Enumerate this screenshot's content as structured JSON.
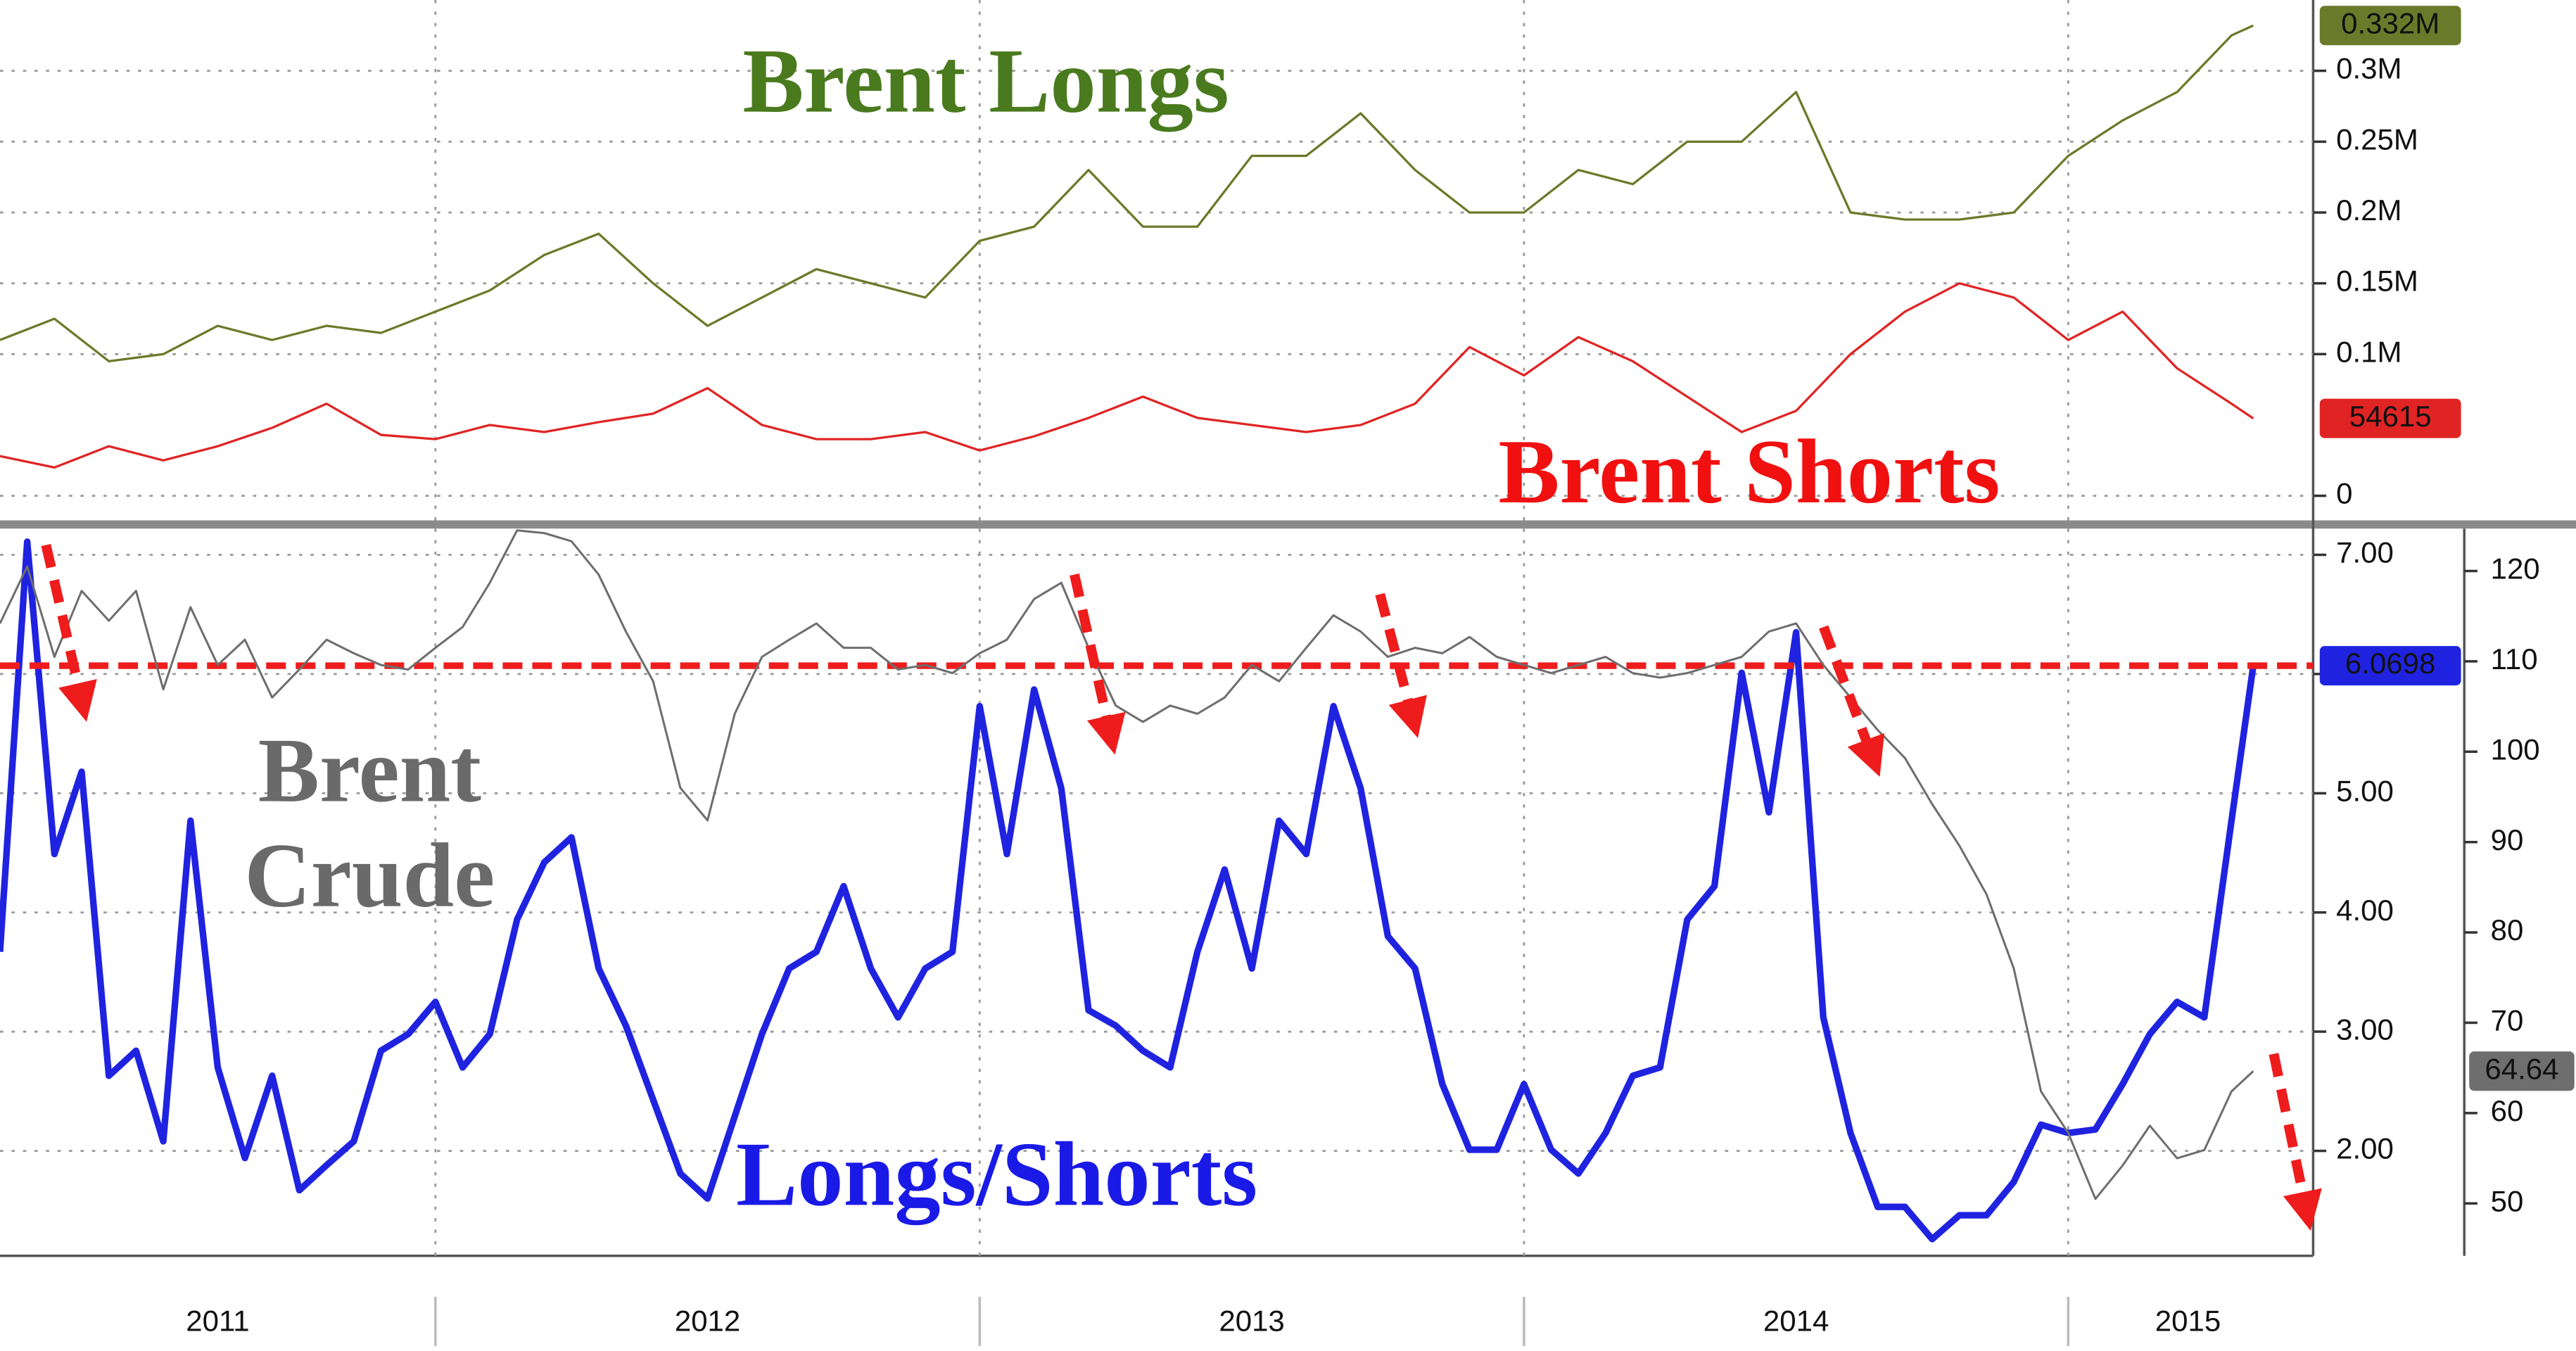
{
  "chart_data": [
    {
      "type": "line",
      "x": [
        2011.2,
        2011.3,
        2011.4,
        2011.5,
        2011.6,
        2011.7,
        2011.8,
        2011.9,
        2012,
        2012.1,
        2012.2,
        2012.3,
        2012.4,
        2012.5,
        2012.6,
        2012.7,
        2012.8,
        2012.9,
        2013,
        2013.1,
        2013.2,
        2013.3,
        2013.4,
        2013.5,
        2013.6,
        2013.7,
        2013.8,
        2013.9,
        2014,
        2014.1,
        2014.2,
        2014.3,
        2014.4,
        2014.5,
        2014.6,
        2014.7,
        2014.8,
        2014.9,
        2015,
        2015.1,
        2015.2,
        2015.3,
        2015.34
      ],
      "xlim": [
        2011.2,
        2015.45
      ],
      "ylim": [
        -0.0185,
        0.35
      ],
      "yticks": [
        0,
        {
          "value": 0.1,
          "label": "0.1M"
        },
        {
          "value": 0.15,
          "label": "0.15M"
        },
        {
          "value": 0.2,
          "label": "0.2M"
        },
        {
          "value": 0.25,
          "label": "0.25M"
        },
        {
          "value": 0.3,
          "label": "0.3M"
        }
      ],
      "grid": true,
      "series": [
        {
          "name": "Brent Longs",
          "color": "#6b7a2a",
          "label_color": "#4a7a1e",
          "line_width": 1.4,
          "last_label": "0.332M",
          "values": [
            0.11,
            0.125,
            0.095,
            0.1,
            0.12,
            0.11,
            0.12,
            0.115,
            0.13,
            0.145,
            0.17,
            0.185,
            0.15,
            0.12,
            0.14,
            0.16,
            0.15,
            0.14,
            0.18,
            0.19,
            0.23,
            0.19,
            0.19,
            0.24,
            0.24,
            0.27,
            0.23,
            0.2,
            0.2,
            0.23,
            0.22,
            0.25,
            0.25,
            0.285,
            0.2,
            0.195,
            0.195,
            0.2,
            0.24,
            0.265,
            0.285,
            0.325,
            0.332
          ]
        },
        {
          "name": "Brent Shorts",
          "color": "#e02424",
          "label_color": "#f01010",
          "line_width": 1.4,
          "last_label": "54615",
          "values": [
            0.028,
            0.02,
            0.035,
            0.025,
            0.035,
            0.048,
            0.065,
            0.043,
            0.04,
            0.05,
            0.045,
            0.052,
            0.058,
            0.076,
            0.05,
            0.04,
            0.04,
            0.045,
            0.032,
            0.042,
            0.055,
            0.07,
            0.055,
            0.05,
            0.045,
            0.05,
            0.065,
            0.105,
            0.085,
            0.112,
            0.095,
            0.07,
            0.045,
            0.06,
            0.1,
            0.13,
            0.15,
            0.14,
            0.11,
            0.13,
            0.09,
            0.065,
            0.054615
          ]
        }
      ]
    },
    {
      "type": "line",
      "x": [
        2011.2,
        2011.25,
        2011.3,
        2011.35,
        2011.4,
        2011.45,
        2011.5,
        2011.55,
        2011.6,
        2011.65,
        2011.7,
        2011.75,
        2011.8,
        2011.85,
        2011.9,
        2011.95,
        2012,
        2012.05,
        2012.1,
        2012.15,
        2012.2,
        2012.25,
        2012.3,
        2012.35,
        2012.4,
        2012.45,
        2012.5,
        2012.55,
        2012.6,
        2012.65,
        2012.7,
        2012.75,
        2012.8,
        2012.85,
        2012.9,
        2012.95,
        2013,
        2013.05,
        2013.1,
        2013.15,
        2013.2,
        2013.25,
        2013.3,
        2013.35,
        2013.4,
        2013.45,
        2013.5,
        2013.55,
        2013.6,
        2013.65,
        2013.7,
        2013.75,
        2013.8,
        2013.85,
        2013.9,
        2013.95,
        2014,
        2014.05,
        2014.1,
        2014.15,
        2014.2,
        2014.25,
        2014.3,
        2014.35,
        2014.4,
        2014.45,
        2014.5,
        2014.55,
        2014.6,
        2014.65,
        2014.7,
        2014.75,
        2014.8,
        2014.85,
        2014.9,
        2014.95,
        2015,
        2015.05,
        2015.1,
        2015.15,
        2015.2,
        2015.25,
        2015.3,
        2015.34
      ],
      "xlim": [
        2011.2,
        2015.45
      ],
      "xticks": [
        {
          "value": 2011.6,
          "label": "2011"
        },
        {
          "value": 2012.5,
          "label": "2012"
        },
        {
          "value": 2013.5,
          "label": "2013"
        },
        {
          "value": 2014.5,
          "label": "2014"
        },
        {
          "value": 2015.22,
          "label": "2015"
        }
      ],
      "year_boundaries": [
        2012,
        2013,
        2014,
        2015
      ],
      "ylim": [
        1.12,
        7.22
      ],
      "yticks": [
        {
          "value": 2,
          "label": "2.00"
        },
        {
          "value": 3,
          "label": "3.00"
        },
        {
          "value": 4,
          "label": "4.00"
        },
        {
          "value": 5,
          "label": "5.00"
        },
        {
          "value": 6,
          "label": "6.00"
        },
        {
          "value": 7,
          "label": "7.00"
        }
      ],
      "y2lim": [
        44.2,
        124.7
      ],
      "y2ticks": [
        50,
        60,
        70,
        80,
        90,
        100,
        110,
        120
      ],
      "grid": true,
      "series": [
        {
          "name": "Longs/Shorts",
          "color": "#1f23e0",
          "label_color": "#1a1ae6",
          "line_width": 4,
          "axis": "y",
          "last_label": "6.0698",
          "values": [
            3.67,
            7.11,
            4.49,
            5.18,
            2.63,
            2.84,
            2.08,
            4.77,
            2.7,
            1.94,
            2.63,
            1.67,
            1.88,
            2.08,
            2.84,
            2.98,
            3.25,
            2.7,
            2.98,
            3.94,
            4.42,
            4.63,
            3.53,
            3.05,
            2.43,
            1.81,
            1.6,
            2.29,
            2.98,
            3.53,
            3.67,
            4.22,
            3.53,
            3.12,
            3.53,
            3.67,
            5.73,
            4.49,
            5.87,
            5.04,
            3.18,
            3.05,
            2.84,
            2.7,
            3.67,
            4.36,
            3.53,
            4.77,
            4.49,
            5.73,
            5.04,
            3.8,
            3.53,
            2.56,
            2.01,
            2.01,
            2.56,
            2.01,
            1.81,
            2.15,
            2.63,
            2.7,
            3.94,
            4.22,
            6.01,
            4.84,
            6.35,
            3.12,
            2.15,
            1.53,
            1.53,
            1.26,
            1.46,
            1.46,
            1.74,
            2.22,
            2.15,
            2.18,
            2.56,
            2.98,
            3.25,
            3.12,
            4.77,
            6.0698
          ]
        },
        {
          "name": "Brent Crude",
          "color": "#6e6e6e",
          "label_color": "#6a6a6a",
          "line_width": 1.3,
          "axis": "y2",
          "last_label": "64.64",
          "values": [
            114.2,
            120.5,
            110.5,
            117.8,
            114.5,
            117.8,
            106.9,
            116.0,
            109.6,
            112.4,
            106.0,
            109.1,
            112.4,
            110.9,
            109.6,
            109.1,
            111.5,
            113.8,
            118.7,
            124.5,
            124.2,
            123.3,
            119.6,
            113.3,
            107.8,
            96.0,
            92.4,
            104.2,
            110.5,
            112.4,
            114.2,
            111.5,
            111.5,
            109.1,
            109.6,
            108.7,
            110.9,
            112.4,
            116.9,
            118.7,
            111.5,
            105.1,
            103.3,
            105.1,
            104.2,
            106.0,
            109.6,
            107.8,
            111.5,
            115.1,
            113.3,
            110.5,
            111.5,
            110.9,
            112.7,
            110.5,
            109.6,
            108.7,
            109.6,
            110.5,
            108.7,
            108.2,
            108.7,
            109.6,
            110.5,
            113.3,
            114.2,
            109.6,
            106.0,
            102.4,
            99.3,
            94.2,
            89.6,
            84.2,
            76.0,
            62.4,
            57.8,
            50.5,
            54.2,
            58.6,
            55.0,
            55.9,
            62.4,
            64.64
          ]
        }
      ]
    }
  ]
}
